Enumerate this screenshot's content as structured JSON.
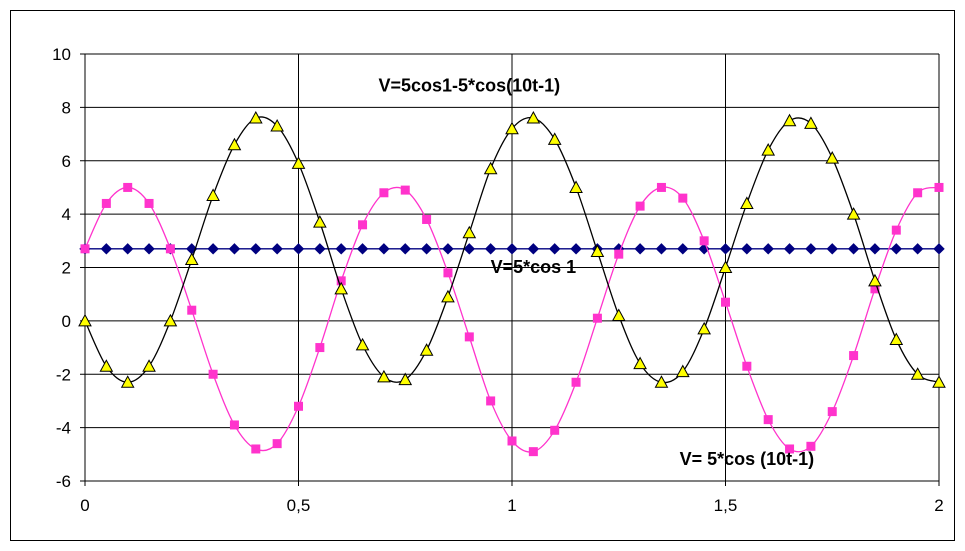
{
  "chart_data": {
    "type": "line",
    "xlim": [
      0,
      2
    ],
    "ylim": [
      -6,
      10
    ],
    "grid": true,
    "x_tick_labels": [
      "0",
      "0,5",
      "1",
      "1,5",
      "2"
    ],
    "y_tick_labels": [
      "10",
      "8",
      "6",
      "4",
      "2",
      "0",
      "-2",
      "-4",
      "-6"
    ],
    "x_ticks": [
      0,
      0.5,
      1,
      1.5,
      2
    ],
    "y_ticks": [
      10,
      8,
      6,
      4,
      2,
      0,
      -2,
      -4,
      -6
    ],
    "annotations": [
      {
        "text": "V=5cos1-5*cos(10t-1)",
        "x": 0.9,
        "y": 8.6
      },
      {
        "text": "V=5*cos 1",
        "x": 1.05,
        "y": 1.8
      },
      {
        "text": "V= 5*cos (10t-1)",
        "x": 1.55,
        "y": -5.4
      }
    ],
    "x": [
      0,
      0.05,
      0.1,
      0.15,
      0.2,
      0.25,
      0.3,
      0.35,
      0.4,
      0.45,
      0.5,
      0.55,
      0.6,
      0.65,
      0.7,
      0.75,
      0.8,
      0.85,
      0.9,
      0.95,
      1,
      1.05,
      1.1,
      1.15,
      1.2,
      1.25,
      1.3,
      1.35,
      1.4,
      1.45,
      1.5,
      1.55,
      1.6,
      1.65,
      1.7,
      1.75,
      1.8,
      1.85,
      1.9,
      1.95,
      2
    ],
    "series": [
      {
        "color": "#000080",
        "marker": "diamond",
        "values": [
          2.7,
          2.7,
          2.7,
          2.7,
          2.7,
          2.7,
          2.7,
          2.7,
          2.7,
          2.7,
          2.7,
          2.7,
          2.7,
          2.7,
          2.7,
          2.7,
          2.7,
          2.7,
          2.7,
          2.7,
          2.7,
          2.7,
          2.7,
          2.7,
          2.7,
          2.7,
          2.7,
          2.7,
          2.7,
          2.7,
          2.7,
          2.7,
          2.7,
          2.7,
          2.7,
          2.7,
          2.7,
          2.7,
          2.7,
          2.7,
          2.7
        ]
      },
      {
        "color": "#ff33cc",
        "marker": "square",
        "values": [
          2.7,
          4.4,
          5.0,
          4.4,
          2.7,
          0.4,
          -2.0,
          -3.9,
          -4.8,
          -4.6,
          -3.2,
          -1.0,
          1.5,
          3.6,
          4.8,
          4.9,
          3.8,
          1.8,
          -0.6,
          -3.0,
          -4.5,
          -4.9,
          -4.1,
          -2.3,
          0.1,
          2.5,
          4.3,
          5.0,
          4.6,
          3.0,
          0.7,
          -1.7,
          -3.7,
          -4.8,
          -4.7,
          -3.4,
          -1.3,
          1.2,
          3.4,
          4.8,
          5.0
        ]
      },
      {
        "color": "#000000",
        "marker": "triangle",
        "marker_fill": "#ffff00",
        "values": [
          0.0,
          -1.7,
          -2.3,
          -1.7,
          0.0,
          2.3,
          4.7,
          6.6,
          7.6,
          7.3,
          5.9,
          3.7,
          1.2,
          -0.9,
          -2.1,
          -2.2,
          -1.1,
          0.9,
          3.3,
          5.7,
          7.2,
          7.6,
          6.8,
          5.0,
          2.6,
          0.2,
          -1.6,
          -2.3,
          -1.9,
          -0.3,
          2.0,
          4.4,
          6.4,
          7.5,
          7.4,
          6.1,
          4.0,
          1.5,
          -0.7,
          -2.0,
          -2.3
        ]
      }
    ]
  }
}
